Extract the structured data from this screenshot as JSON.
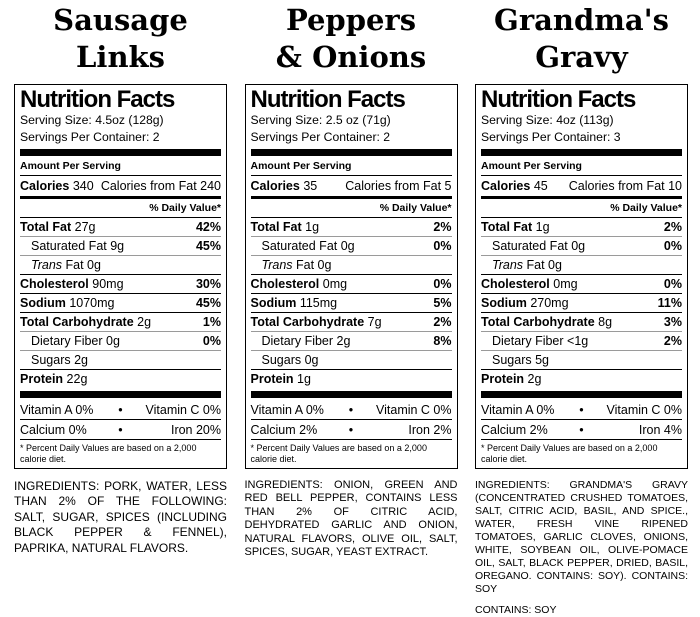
{
  "glyphs": {
    "bullet": "•"
  },
  "labels": [
    {
      "title_line1": "Sausage",
      "title_line2": "Links",
      "nf_title": "Nutrition Facts",
      "serving_size": "Serving Size: 4.5oz (128g)",
      "servings_per_container": "Servings Per Container: 2",
      "amount_per_serving": "Amount Per Serving",
      "calories_label": "Calories",
      "calories_value": "340",
      "calories_from_fat": "Calories from Fat 240",
      "daily_value_header": "% Daily Value*",
      "rows": [
        {
          "b": "Total Fat",
          "p": "27g",
          "dv": "42%"
        },
        {
          "p": "Saturated Fat 9g",
          "dv": "45%"
        },
        {
          "i": "Trans",
          "p": "Fat 0g"
        },
        {
          "b": "Cholesterol",
          "p": "90mg",
          "dv": "30%"
        },
        {
          "b": "Sodium",
          "p": "1070mg",
          "dv": "45%"
        },
        {
          "b": "Total Carbohydrate",
          "p": "2g",
          "dv": "1%"
        },
        {
          "p": "Dietary Fiber 0g",
          "dv": "0%"
        },
        {
          "p": "Sugars 2g"
        },
        {
          "b": "Protein",
          "p": "22g"
        }
      ],
      "vitamins": [
        {
          "left": "Vitamin A 0%",
          "right": "Vitamin C 0%"
        },
        {
          "left": "Calcium 0%",
          "right": "Iron 20%"
        }
      ],
      "footnote": "* Percent Daily Values are based on a 2,000 calorie diet.",
      "ingredients": "INGREDIENTS: PORK, WATER, LESS THAN 2% OF THE FOLLOWING: SALT, SUGAR, SPICES (INCLUDING BLACK PEPPER & FENNEL), PAPRIKA, NATURAL FLAVORS."
    },
    {
      "title_line1": "Peppers",
      "title_line2": "& Onions",
      "nf_title": "Nutrition Facts",
      "serving_size": "Serving Size: 2.5 oz (71g)",
      "servings_per_container": "Servings Per Container: 2",
      "amount_per_serving": "Amount Per Serving",
      "calories_label": "Calories",
      "calories_value": "35",
      "calories_from_fat": "Calories from Fat 5",
      "daily_value_header": "% Daily Value*",
      "rows": [
        {
          "b": "Total Fat",
          "p": "1g",
          "dv": "2%"
        },
        {
          "p": "Saturated Fat 0g",
          "dv": "0%"
        },
        {
          "i": "Trans",
          "p": "Fat 0g"
        },
        {
          "b": "Cholesterol",
          "p": "0mg",
          "dv": "0%"
        },
        {
          "b": "Sodium",
          "p": "115mg",
          "dv": "5%"
        },
        {
          "b": "Total Carbohydrate",
          "p": "7g",
          "dv": "2%"
        },
        {
          "p": "Dietary Fiber 2g",
          "dv": "8%"
        },
        {
          "p": "Sugars 0g"
        },
        {
          "b": "Protein",
          "p": "1g"
        }
      ],
      "vitamins": [
        {
          "left": "Vitamin A 0%",
          "right": "Vitamin C 0%"
        },
        {
          "left": "Calcium 2%",
          "right": "Iron 2%"
        }
      ],
      "footnote": "* Percent Daily Values are based on a 2,000 calorie diet.",
      "ingredients": "INGREDIENTS: ONION, GREEN AND RED BELL PEPPER, CONTAINS LESS THAN 2% OF CITRIC ACID, DEHYDRATED GARLIC AND ONION, NATURAL FLAVORS, OLIVE OIL, SALT, SPICES, SUGAR, YEAST EXTRACT."
    },
    {
      "title_line1": "Grandma's",
      "title_line2": "Gravy",
      "nf_title": "Nutrition Facts",
      "serving_size": "Serving Size: 4oz (113g)",
      "servings_per_container": "Servings Per Container: 3",
      "amount_per_serving": "Amount Per Serving",
      "calories_label": "Calories",
      "calories_value": "45",
      "calories_from_fat": "Calories from Fat 10",
      "daily_value_header": "% Daily Value*",
      "rows": [
        {
          "b": "Total Fat",
          "p": "1g",
          "dv": "2%"
        },
        {
          "p": "Saturated Fat 0g",
          "dv": "0%"
        },
        {
          "i": "Trans",
          "p": "Fat 0g"
        },
        {
          "b": "Cholesterol",
          "p": "0mg",
          "dv": "0%"
        },
        {
          "b": "Sodium",
          "p": "270mg",
          "dv": "11%"
        },
        {
          "b": "Total Carbohydrate",
          "p": "8g",
          "dv": "3%"
        },
        {
          "p": "Dietary Fiber <1g",
          "dv": "2%"
        },
        {
          "p": "Sugars 5g"
        },
        {
          "b": "Protein",
          "p": "2g"
        }
      ],
      "vitamins": [
        {
          "left": "Vitamin A 0%",
          "right": "Vitamin C 0%"
        },
        {
          "left": "Calcium 2%",
          "right": "Iron 4%"
        }
      ],
      "footnote": "* Percent Daily Values are based on a 2,000 calorie diet.",
      "ingredients": "INGREDIENTS: GRANDMA'S GRAVY (CONCENTRATED CRUSHED TOMATOES, SALT, CITRIC ACID, BASIL, AND SPICE., WATER, FRESH VINE RIPENED TOMATOES, GARLIC CLOVES, ONIONS, WHITE, SOYBEAN OIL, OLIVE-POMACE OIL, SALT, BLACK PEPPER, DRIED, BASIL, OREGANO. CONTAINS: SOY). CONTAINS: SOY",
      "contains": "CONTAINS: SOY"
    }
  ]
}
